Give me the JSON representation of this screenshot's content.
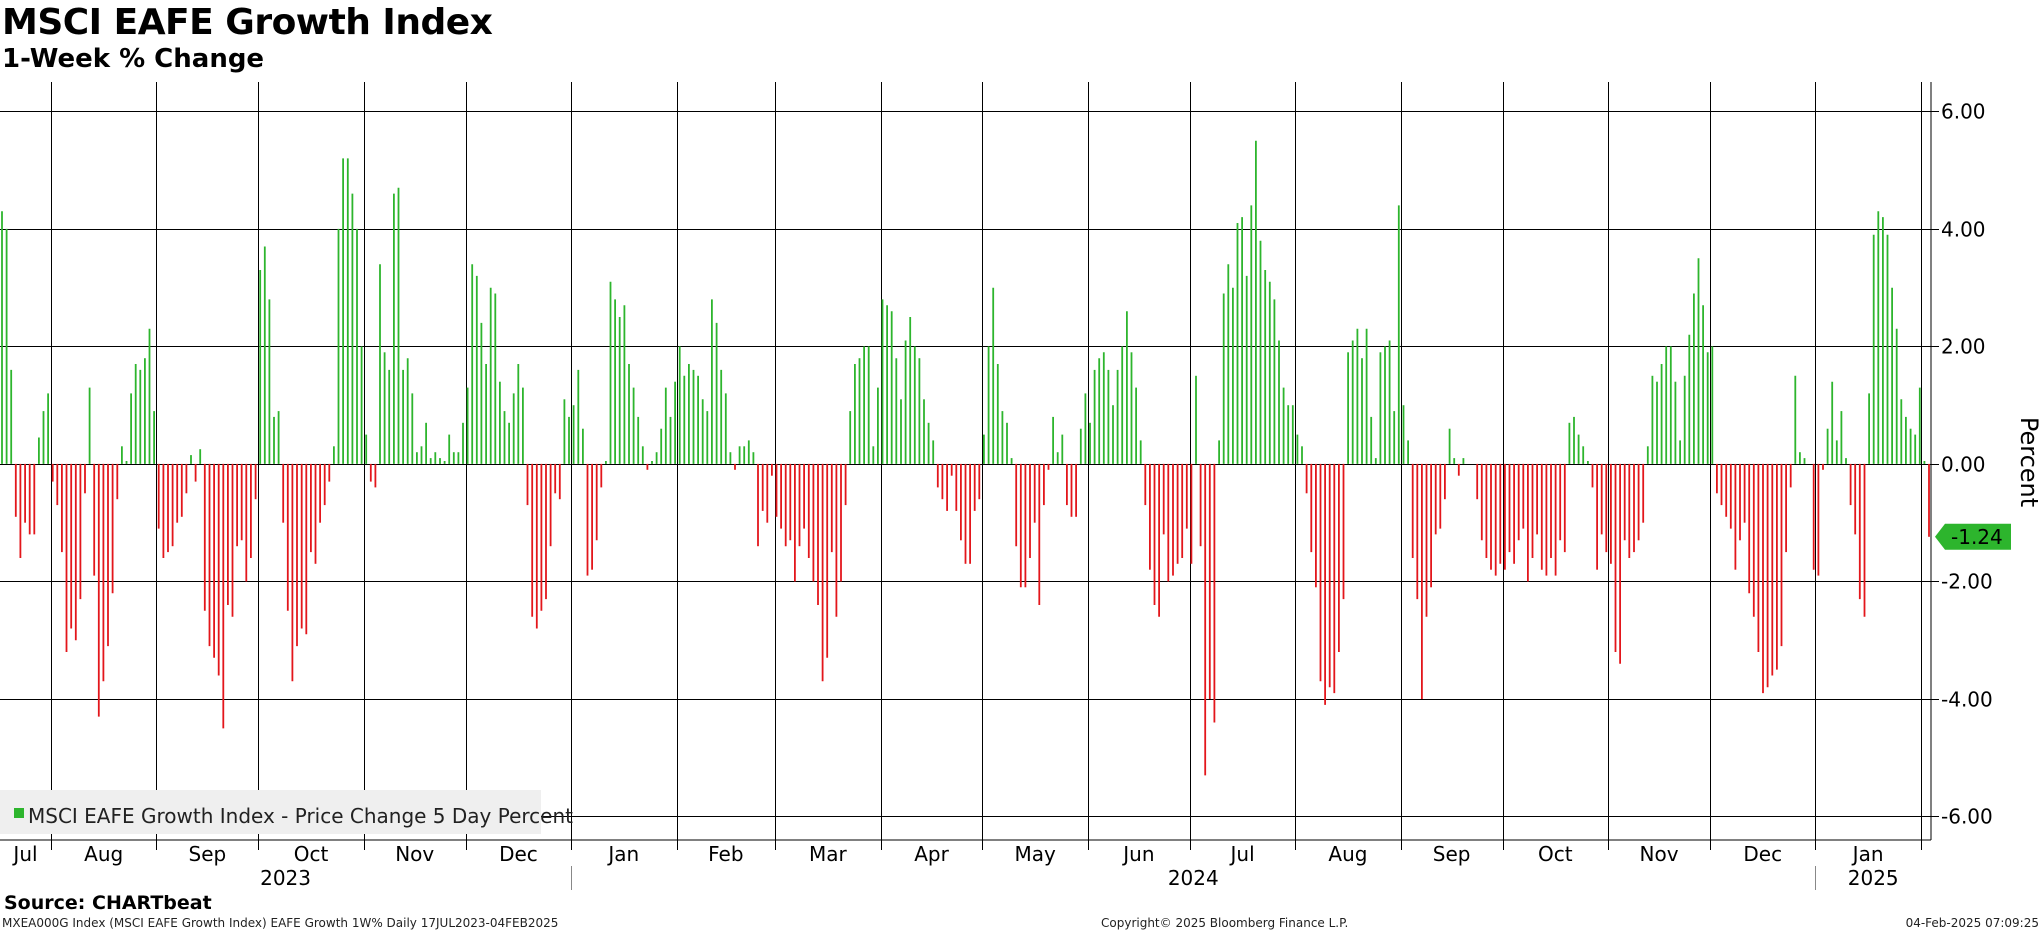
{
  "header": {
    "title": "MSCI EAFE Growth Index",
    "subtitle": "1-Week % Change"
  },
  "footer": {
    "source": "Source: CHARTbeat",
    "series_info": "MXEA000G Index (MSCI EAFE Growth Index) EAFE Growth 1W%  Daily 17JUL2023-04FEB2025",
    "copyright": "Copyright© 2025 Bloomberg Finance L.P.",
    "timestamp": "04-Feb-2025 07:09:25"
  },
  "colors": {
    "positive": "#2db52d",
    "negative": "#e3161b",
    "grid": "#000000",
    "legend_bg": "#efefef"
  },
  "chart_data": {
    "type": "bar",
    "title": "MSCI EAFE Growth Index",
    "subtitle": "1-Week % Change",
    "ylabel": "Percent",
    "xlabel": "",
    "ylim": [
      -6.4,
      6.5
    ],
    "yticks": [
      6,
      4,
      2,
      0,
      -2,
      -4,
      -6
    ],
    "ytick_labels": [
      "6.00",
      "4.00",
      "2.00",
      "0.00",
      "-2.00",
      "-4.00",
      "-6.00"
    ],
    "legend": {
      "label": "MSCI EAFE Growth Index - Price Change 5 Day Percent",
      "position": "bottom-left"
    },
    "last_value": -1.24,
    "last_value_label": "-1.24",
    "month_labels": [
      "Jul",
      "Aug",
      "Sep",
      "Oct",
      "Nov",
      "Dec",
      "Jan",
      "Feb",
      "Mar",
      "Apr",
      "May",
      "Jun",
      "Jul",
      "Aug",
      "Sep",
      "Oct",
      "Nov",
      "Dec",
      "Jan"
    ],
    "year_labels": [
      "2023",
      "2024",
      "2025"
    ],
    "x_start": "2023-07-17",
    "x_end": "2025-02-04",
    "values": [
      4.3,
      4.0,
      1.6,
      -0.9,
      -1.6,
      -1.0,
      -1.2,
      -1.2,
      0.45,
      0.9,
      1.2,
      -0.3,
      -0.7,
      -1.5,
      -3.2,
      -2.8,
      -3.0,
      -2.3,
      -0.5,
      1.3,
      -1.9,
      -4.3,
      -3.7,
      -3.1,
      -2.2,
      -0.6,
      0.3,
      0.05,
      1.2,
      1.7,
      1.6,
      1.8,
      2.3,
      0.9,
      -1.1,
      -1.6,
      -1.5,
      -1.4,
      -1.0,
      -0.9,
      -0.5,
      0.15,
      -0.3,
      0.25,
      -2.5,
      -3.1,
      -3.3,
      -3.6,
      -4.5,
      -2.4,
      -2.6,
      -1.4,
      -1.3,
      -2.0,
      -1.6,
      -0.6,
      3.3,
      3.7,
      2.8,
      0.8,
      0.9,
      -1.0,
      -2.5,
      -3.7,
      -3.1,
      -2.8,
      -2.9,
      -1.5,
      -1.7,
      -1.0,
      -0.7,
      -0.3,
      0.3,
      4.0,
      5.2,
      5.2,
      4.6,
      4.0,
      2.0,
      0.5,
      -0.3,
      -0.4,
      3.4,
      1.9,
      1.6,
      4.6,
      4.7,
      1.6,
      1.8,
      1.2,
      0.2,
      0.3,
      0.7,
      0.1,
      0.2,
      0.1,
      0.05,
      0.5,
      0.2,
      0.2,
      0.7,
      1.3,
      3.4,
      3.2,
      2.4,
      1.7,
      3.0,
      2.9,
      1.4,
      0.9,
      0.7,
      1.2,
      1.7,
      1.3,
      -0.7,
      -2.6,
      -2.8,
      -2.5,
      -2.3,
      -1.4,
      -0.5,
      -0.6,
      1.1,
      0.8,
      1.0,
      1.6,
      0.6,
      -1.9,
      -1.8,
      -1.3,
      -0.4,
      0.05,
      3.1,
      2.8,
      2.5,
      2.7,
      1.7,
      1.3,
      0.8,
      0.3,
      -0.1,
      0.05,
      0.2,
      0.6,
      1.3,
      0.8,
      1.4,
      2.0,
      1.5,
      1.7,
      1.6,
      1.5,
      1.1,
      0.9,
      2.8,
      2.4,
      1.6,
      1.2,
      0.2,
      -0.1,
      0.3,
      0.3,
      0.4,
      0.2,
      -1.4,
      -0.8,
      -1.0,
      -0.2,
      -0.9,
      -1.1,
      -1.4,
      -1.3,
      -2.0,
      -1.4,
      -1.1,
      -1.6,
      -2.0,
      -2.4,
      -3.7,
      -3.3,
      -1.5,
      -2.6,
      -2.0,
      -0.7,
      0.9,
      1.7,
      1.8,
      2.0,
      2.0,
      0.3,
      1.3,
      2.8,
      2.7,
      2.6,
      1.8,
      1.1,
      2.1,
      2.5,
      2.0,
      1.8,
      1.1,
      0.7,
      0.4,
      -0.4,
      -0.6,
      -0.8,
      -0.2,
      -0.8,
      -1.3,
      -1.7,
      -1.7,
      -0.8,
      -0.6,
      0.5,
      2.0,
      3.0,
      1.7,
      0.9,
      0.7,
      0.1,
      -1.4,
      -2.1,
      -2.1,
      -1.6,
      -1.0,
      -2.4,
      -0.7,
      -0.1,
      0.8,
      0.2,
      0.5,
      -0.7,
      -0.9,
      -0.9,
      0.6,
      1.2,
      0.7,
      1.6,
      1.8,
      1.9,
      1.6,
      1.0,
      1.6,
      2.0,
      2.6,
      1.9,
      1.3,
      0.4,
      -0.7,
      -1.8,
      -2.4,
      -2.6,
      -1.2,
      -2.0,
      -1.9,
      -1.7,
      -1.6,
      -1.1,
      -1.7,
      1.5,
      -1.4,
      -5.3,
      -4.0,
      -4.4,
      0.4,
      2.9,
      3.4,
      3.0,
      4.1,
      4.2,
      3.2,
      4.4,
      5.5,
      3.8,
      3.3,
      3.1,
      2.8,
      2.1,
      1.3,
      1.0,
      1.0,
      0.5,
      0.3,
      -0.5,
      -1.5,
      -2.1,
      -3.7,
      -4.1,
      -3.8,
      -3.9,
      -3.2,
      -2.3,
      1.9,
      2.1,
      2.3,
      1.8,
      2.3,
      0.8,
      0.1,
      1.9,
      2.0,
      2.1,
      0.9,
      4.4,
      1.0,
      0.4,
      -1.6,
      -2.3,
      -4.0,
      -2.6,
      -2.1,
      -1.2,
      -1.1,
      -0.6,
      0.6,
      0.1,
      -0.2,
      0.1,
      0.0,
      0.0,
      -0.6,
      -1.3,
      -1.6,
      -1.8,
      -1.9,
      -1.7,
      -1.8,
      -1.5,
      -1.7,
      -1.3,
      -1.1,
      -2.0,
      -1.6,
      -1.2,
      -1.8,
      -1.9,
      -1.6,
      -1.9,
      -1.3,
      -1.5,
      0.7,
      0.8,
      0.5,
      0.3,
      0.05,
      -0.4,
      -1.8,
      -1.2,
      -1.5,
      -1.7,
      -3.2,
      -3.4,
      -1.3,
      -1.6,
      -1.5,
      -1.3,
      -1.0,
      0.3,
      1.5,
      1.4,
      1.7,
      2.0,
      2.0,
      1.4,
      0.4,
      1.5,
      2.2,
      2.9,
      3.5,
      2.7,
      1.9,
      2.0,
      -0.5,
      -0.7,
      -0.9,
      -1.1,
      -1.8,
      -1.3,
      -1.0,
      -2.2,
      -2.6,
      -3.2,
      -3.9,
      -3.8,
      -3.6,
      -3.5,
      -3.1,
      -1.5,
      -0.4,
      1.5,
      0.2,
      0.1,
      0.0,
      -1.8,
      -1.9,
      -0.1,
      0.6,
      1.4,
      0.4,
      0.9,
      0.1,
      -0.7,
      -1.2,
      -2.3,
      -2.6,
      1.2,
      3.9,
      4.3,
      4.2,
      3.9,
      3.0,
      2.3,
      1.1,
      0.8,
      0.6,
      0.5,
      1.3,
      0.05,
      -1.24
    ]
  }
}
